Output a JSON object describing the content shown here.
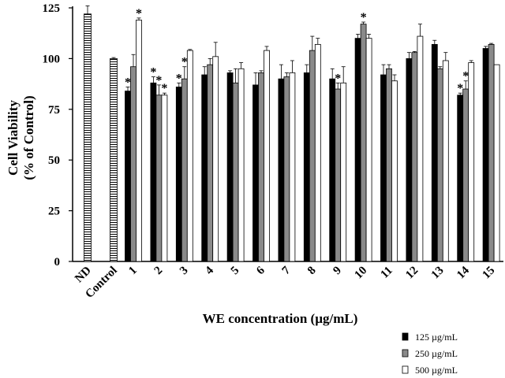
{
  "chart_data": {
    "type": "bar",
    "xlabel": "WE concentration (µg/mL)",
    "ylabel_line1": "Cell Viability",
    "ylabel_line2": "(% of Control)",
    "ylim": [
      0,
      125
    ],
    "yticks": [
      0,
      25,
      50,
      75,
      100,
      125
    ],
    "legend_position": "bottom-right",
    "reference_bars": [
      {
        "label": "ND",
        "value": 122,
        "error": 4
      },
      {
        "label": "Control",
        "value": 100,
        "error": 0.5
      }
    ],
    "categories": [
      "1",
      "2",
      "3",
      "4",
      "5",
      "6",
      "7",
      "8",
      "9",
      "10",
      "11",
      "12",
      "13",
      "14",
      "15"
    ],
    "series": [
      {
        "name": "125 µg/mL",
        "color": "#000000",
        "values": [
          84,
          88,
          86,
          92,
          93,
          87,
          90,
          93,
          90,
          110,
          92,
          100,
          107,
          82,
          105
        ],
        "errors": [
          2,
          3,
          2,
          4,
          1,
          6,
          7,
          4,
          5,
          2,
          5,
          3,
          2,
          1,
          1
        ],
        "significant": [
          true,
          true,
          true,
          false,
          false,
          false,
          false,
          false,
          false,
          false,
          false,
          false,
          false,
          true,
          false
        ]
      },
      {
        "name": "250 µg/mL",
        "color": "#8a8a8a",
        "values": [
          96,
          82,
          90,
          97,
          88,
          93,
          91,
          104,
          85,
          117,
          95,
          103,
          95,
          85,
          107
        ],
        "errors": [
          6,
          5,
          6,
          3,
          7,
          1,
          2,
          7,
          3,
          1,
          2,
          0.5,
          1,
          4,
          0.5
        ],
        "significant": [
          false,
          true,
          true,
          false,
          false,
          false,
          false,
          false,
          true,
          true,
          false,
          false,
          false,
          true,
          false
        ]
      },
      {
        "name": "500 µg/mL",
        "color": "#ffffff",
        "values": [
          119,
          82,
          104,
          101,
          95,
          104,
          93,
          107,
          88,
          110,
          89,
          111,
          99,
          98,
          97
        ],
        "errors": [
          1,
          1,
          0.5,
          7,
          3,
          2,
          6,
          3,
          8,
          2,
          3,
          6,
          4,
          1,
          0
        ],
        "significant": [
          true,
          true,
          false,
          false,
          false,
          false,
          false,
          false,
          false,
          false,
          false,
          false,
          false,
          false,
          false
        ]
      }
    ],
    "significance_marker": "*"
  }
}
